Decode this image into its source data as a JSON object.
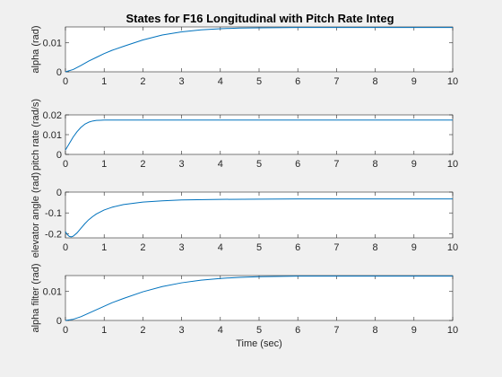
{
  "figure": {
    "title": "States for F16 Longitudinal with Pitch Rate Integ",
    "background": "#f0f0f0",
    "axes_background": "#ffffff",
    "axis_color": "#262626",
    "line_color": "#0072bd"
  },
  "chart_data": [
    {
      "type": "line",
      "title": "States for F16 Longitudinal with Pitch Rate Integ",
      "xlabel": "",
      "ylabel": "alpha (rad)",
      "xlim": [
        0,
        10
      ],
      "ylim": [
        0,
        0.0155
      ],
      "xticks": [
        "0",
        "1",
        "2",
        "3",
        "4",
        "5",
        "6",
        "7",
        "8",
        "9",
        "10"
      ],
      "yticks": [
        {
          "value": 0,
          "label": "0"
        },
        {
          "value": 0.01,
          "label": "0.01"
        }
      ],
      "grid": false,
      "series": [
        {
          "x": [
            0,
            0.2,
            0.4,
            0.6,
            0.8,
            1.0,
            1.2,
            1.5,
            2.0,
            2.5,
            3.0,
            3.5,
            4.0,
            4.5,
            5.0,
            6.0,
            7.0,
            8.0,
            9.0,
            10.0
          ],
          "y": [
            0,
            0.0008,
            0.0022,
            0.0037,
            0.005,
            0.0063,
            0.0074,
            0.0088,
            0.011,
            0.0127,
            0.0138,
            0.0145,
            0.0149,
            0.0151,
            0.0152,
            0.0153,
            0.0153,
            0.0153,
            0.0153,
            0.0153
          ]
        }
      ]
    },
    {
      "type": "line",
      "title": "",
      "xlabel": "",
      "ylabel": "pitch rate (rad/s)",
      "xlim": [
        0,
        10
      ],
      "ylim": [
        0,
        0.02
      ],
      "xticks": [
        "0",
        "1",
        "2",
        "3",
        "4",
        "5",
        "6",
        "7",
        "8",
        "9",
        "10"
      ],
      "yticks": [
        {
          "value": 0,
          "label": "0"
        },
        {
          "value": 0.01,
          "label": "0.01"
        },
        {
          "value": 0.02,
          "label": "0.02"
        }
      ],
      "grid": false,
      "series": [
        {
          "x": [
            0,
            0.1,
            0.2,
            0.3,
            0.4,
            0.5,
            0.6,
            0.7,
            0.8,
            0.9,
            1.0,
            1.2,
            1.5,
            2.0,
            3.0,
            4.0,
            5.0,
            7.0,
            10.0
          ],
          "y": [
            0.0022,
            0.0055,
            0.0088,
            0.0115,
            0.0137,
            0.0153,
            0.0163,
            0.0169,
            0.0172,
            0.0173,
            0.0174,
            0.0174,
            0.0174,
            0.0174,
            0.0174,
            0.0174,
            0.0174,
            0.0174,
            0.0174
          ]
        }
      ]
    },
    {
      "type": "line",
      "title": "",
      "xlabel": "",
      "ylabel": "elevator angle (rad)",
      "xlim": [
        0,
        10
      ],
      "ylim": [
        -0.22,
        0
      ],
      "xticks": [
        "0",
        "1",
        "2",
        "3",
        "4",
        "5",
        "6",
        "7",
        "8",
        "9",
        "10"
      ],
      "yticks": [
        {
          "value": 0,
          "label": "0"
        },
        {
          "value": -0.1,
          "label": "-0.1"
        },
        {
          "value": -0.2,
          "label": "-0.2"
        }
      ],
      "grid": false,
      "series": [
        {
          "x": [
            0,
            0.05,
            0.1,
            0.15,
            0.2,
            0.3,
            0.4,
            0.5,
            0.6,
            0.7,
            0.8,
            1.0,
            1.2,
            1.5,
            2.0,
            2.5,
            3.0,
            4.0,
            5.0,
            6.0,
            8.0,
            10.0
          ],
          "y": [
            -0.19,
            -0.205,
            -0.213,
            -0.215,
            -0.212,
            -0.196,
            -0.174,
            -0.152,
            -0.133,
            -0.118,
            -0.105,
            -0.086,
            -0.073,
            -0.06,
            -0.048,
            -0.042,
            -0.038,
            -0.035,
            -0.034,
            -0.033,
            -0.033,
            -0.033
          ]
        }
      ]
    },
    {
      "type": "line",
      "title": "",
      "xlabel": "Time (sec)",
      "ylabel": "alpha filter (rad)",
      "xlim": [
        0,
        10
      ],
      "ylim": [
        0,
        0.0155
      ],
      "xticks": [
        "0",
        "1",
        "2",
        "3",
        "4",
        "5",
        "6",
        "7",
        "8",
        "9",
        "10"
      ],
      "yticks": [
        {
          "value": 0,
          "label": "0"
        },
        {
          "value": 0.01,
          "label": "0.01"
        }
      ],
      "grid": false,
      "series": [
        {
          "x": [
            0,
            0.2,
            0.4,
            0.6,
            0.8,
            1.0,
            1.2,
            1.5,
            2.0,
            2.5,
            3.0,
            3.5,
            4.0,
            4.5,
            5.0,
            6.0,
            7.0,
            8.0,
            9.0,
            10.0
          ],
          "y": [
            0,
            0.0004,
            0.0013,
            0.0025,
            0.0037,
            0.0049,
            0.0061,
            0.0076,
            0.0099,
            0.0117,
            0.013,
            0.0139,
            0.0145,
            0.0149,
            0.0151,
            0.0153,
            0.0153,
            0.0153,
            0.0153,
            0.0153
          ]
        }
      ]
    }
  ]
}
